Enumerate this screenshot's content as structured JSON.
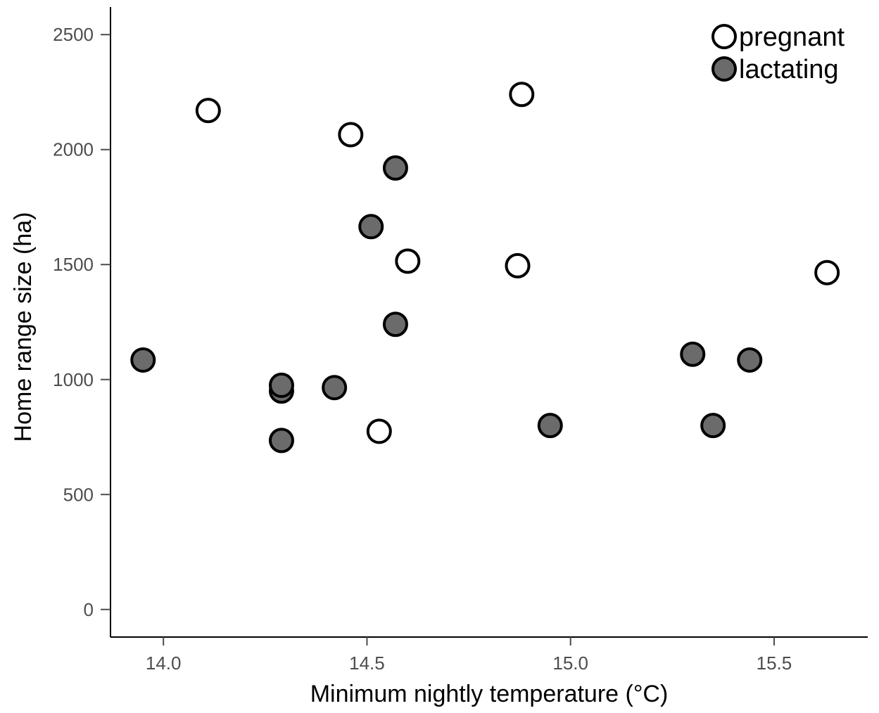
{
  "chart_data": {
    "type": "scatter",
    "title": "",
    "xlabel": "Minimum nightly temperature (°C)",
    "ylabel": "Home range size (ha)",
    "xlim": [
      13.87,
      15.73
    ],
    "ylim": [
      -120,
      2620
    ],
    "xticks": [
      {
        "value": 14.0,
        "label": "14.0"
      },
      {
        "value": 14.5,
        "label": "14.5"
      },
      {
        "value": 15.0,
        "label": "15.0"
      },
      {
        "value": 15.5,
        "label": "15.5"
      }
    ],
    "yticks": [
      {
        "value": 0,
        "label": "0"
      },
      {
        "value": 500,
        "label": "500"
      },
      {
        "value": 1000,
        "label": "1000"
      },
      {
        "value": 1500,
        "label": "1500"
      },
      {
        "value": 2000,
        "label": "2000"
      },
      {
        "value": 2500,
        "label": "2500"
      }
    ],
    "grid": false,
    "legend_position": "top-right",
    "series": [
      {
        "name": "pregnant",
        "fill": "#ffffff",
        "stroke": "#000000",
        "x": [
          14.11,
          14.46,
          14.53,
          14.6,
          14.87,
          14.88,
          15.63
        ],
        "y": [
          2170,
          2065,
          775,
          1515,
          1495,
          2240,
          1465
        ]
      },
      {
        "name": "lactating",
        "fill": "#6b6b6b",
        "stroke": "#000000",
        "x": [
          13.95,
          14.29,
          14.29,
          14.29,
          14.42,
          14.51,
          14.57,
          14.57,
          14.95,
          15.3,
          15.35,
          15.44
        ],
        "y": [
          1085,
          950,
          975,
          735,
          965,
          1665,
          1920,
          1240,
          800,
          1110,
          800,
          1085
        ]
      }
    ]
  }
}
